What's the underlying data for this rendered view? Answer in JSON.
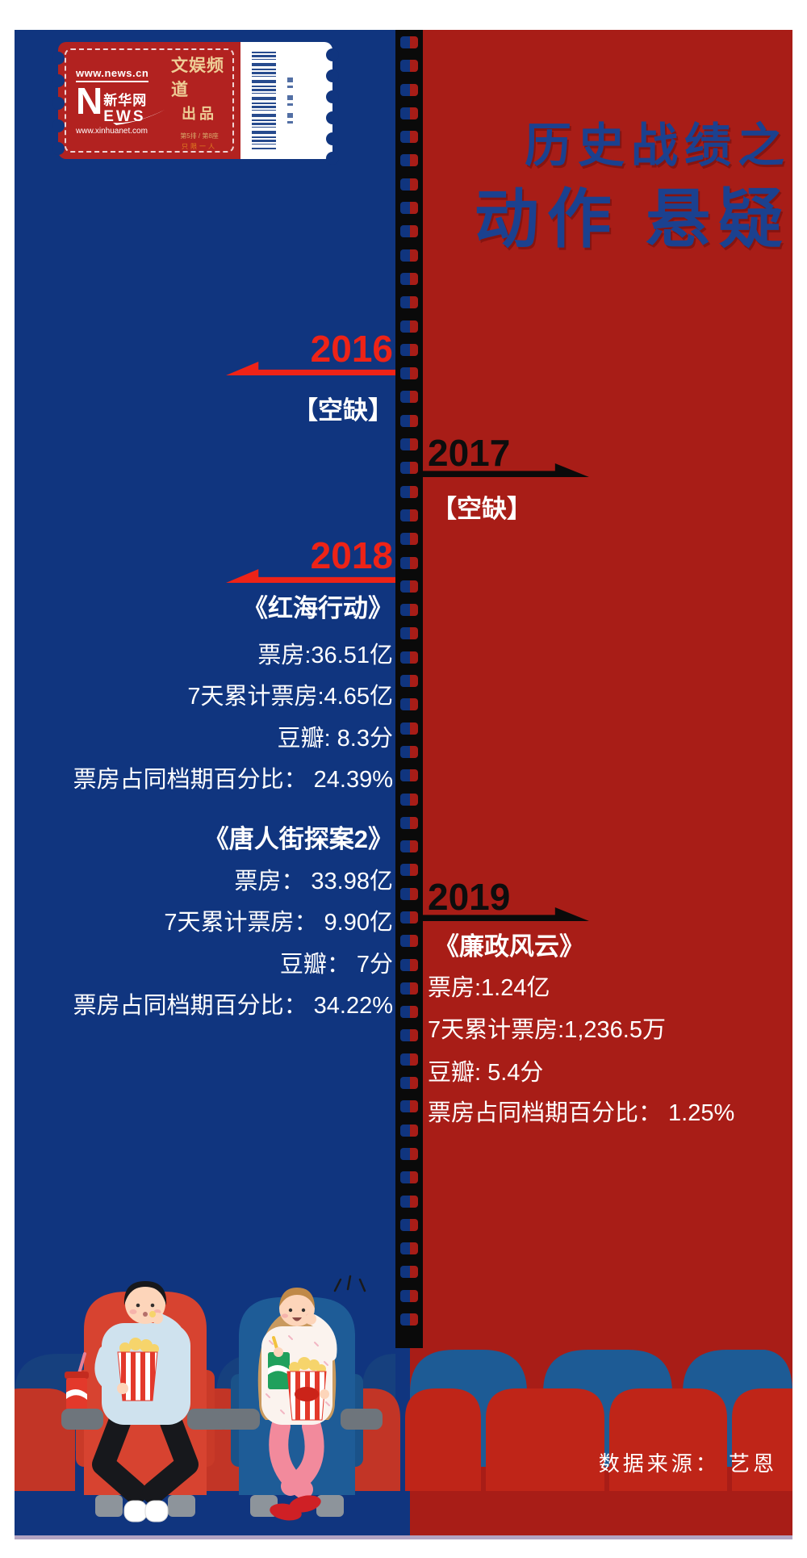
{
  "ticket": {
    "url_top": "www.news.cn",
    "logo_n": "N",
    "logo_cn": "新华网",
    "logo_ews": "EWS",
    "url_bottom": "www.xinhuanet.com",
    "channel": "文娱频道",
    "produced_by": "出品",
    "seat": "第5排 / 第8座",
    "admit": "只限一人"
  },
  "title": {
    "line1": "历史战绩之",
    "line2": "动作 悬疑"
  },
  "timeline": {
    "y2016": {
      "year": "2016",
      "empty": "【空缺】"
    },
    "y2017": {
      "year": "2017",
      "empty": "【空缺】"
    },
    "y2018": {
      "year": "2018",
      "movie1": {
        "title": "《红海行动》",
        "box_office": "票房:36.51亿",
        "week7": "7天累计票房:4.65亿",
        "douban": "豆瓣: 8.3分",
        "share": "票房占同档期百分比： 24.39%"
      },
      "movie2": {
        "title": "《唐人街探案2》",
        "box_office": "票房： 33.98亿",
        "week7": "7天累计票房： 9.90亿",
        "douban": "豆瓣： 7分",
        "share": "票房占同档期百分比： 34.22%"
      }
    },
    "y2019": {
      "year": "2019",
      "movie1": {
        "title": "《廉政风云》",
        "box_office": "票房:1.24亿",
        "week7": "7天累计票房:1,236.5万",
        "douban": "豆瓣: 5.4分",
        "share": "票房占同档期百分比： 1.25%"
      }
    }
  },
  "footer": {
    "source": "数据来源： 艺恩"
  },
  "colors": {
    "left_bg": "#10357f",
    "right_bg": "#a81d17",
    "accent_red": "#ee2317",
    "year_black": "#0d0d0d",
    "title_blue": "#1b418f",
    "text_white": "#ffffff",
    "bottom_line": "#b2a3c2",
    "ticket_red": "#b22220",
    "ticket_gold": "#eecd96"
  }
}
